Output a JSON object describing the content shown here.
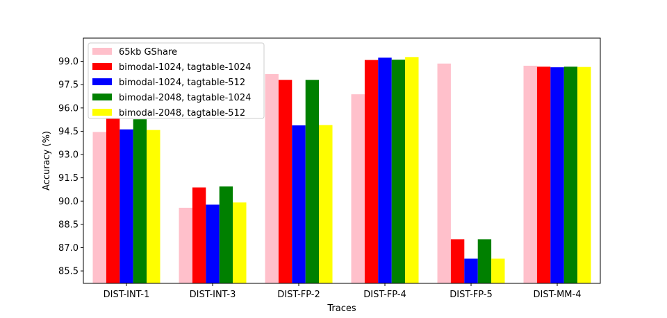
{
  "chart_data": {
    "type": "bar",
    "title": "",
    "xlabel": "Traces",
    "ylabel": "Accuracy (%)",
    "ylim": [
      84.7,
      100.5
    ],
    "yticks": [
      85.5,
      87.0,
      88.5,
      90.0,
      91.5,
      93.0,
      94.5,
      96.0,
      97.5,
      99.0
    ],
    "ytick_labels": [
      "85.5",
      "87.0",
      "88.5",
      "90.0",
      "91.5",
      "93.0",
      "94.5",
      "96.0",
      "97.5",
      "99.0"
    ],
    "grid": false,
    "legend_position": "top-left",
    "categories": [
      "DIST-INT-1",
      "DIST-INT-3",
      "DIST-FP-2",
      "DIST-FP-4",
      "DIST-FP-5",
      "DIST-MM-4"
    ],
    "series": [
      {
        "name": "65kb GShare",
        "color": "#ffc0cb",
        "values": [
          94.45,
          89.57,
          98.18,
          96.88,
          98.86,
          98.72
        ]
      },
      {
        "name": "bimodal-1024, tagtable-1024",
        "color": "#ff0000",
        "values": [
          95.3,
          90.88,
          97.81,
          99.09,
          87.54,
          98.66
        ]
      },
      {
        "name": "bimodal-1024, tagtable-512",
        "color": "#0000ff",
        "values": [
          94.62,
          89.77,
          94.88,
          99.24,
          86.29,
          98.62
        ]
      },
      {
        "name": "bimodal-2048, tagtable-1024",
        "color": "#008000",
        "values": [
          95.27,
          90.94,
          97.81,
          99.11,
          87.54,
          98.66
        ]
      },
      {
        "name": "bimodal-2048, tagtable-512",
        "color": "#ffff00",
        "values": [
          94.58,
          89.91,
          94.9,
          99.28,
          86.29,
          98.64
        ]
      }
    ]
  }
}
